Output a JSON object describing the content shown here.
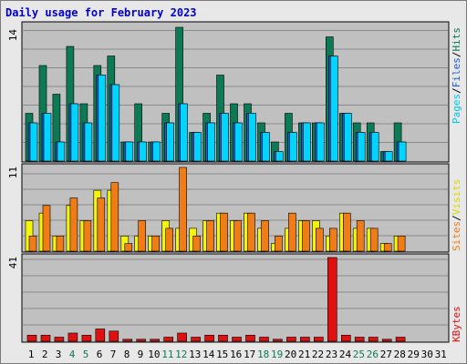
{
  "title": "Daily usage for February 2023",
  "colors": {
    "pages": "#00d4ff",
    "files": "#1e5bd6",
    "hits": "#0b7a55",
    "visits": "#f5f50a",
    "sites": "#f07c17",
    "kbytes": "#e01010",
    "weekend_day": "#0b7a55",
    "panel_bg": "#c0c0c0"
  },
  "legend": {
    "top": {
      "pages": "Pages",
      "sep1": "/",
      "files": "Files",
      "sep2": "/",
      "hits": "Hits"
    },
    "middle": {
      "sites": "Sites",
      "sep": "/",
      "visits": "Visits"
    },
    "bottom": {
      "kbytes": "KBytes"
    }
  },
  "chart_data": {
    "type": "bar",
    "categories": [
      "1",
      "2",
      "3",
      "4",
      "5",
      "6",
      "7",
      "8",
      "9",
      "10",
      "11",
      "12",
      "13",
      "14",
      "15",
      "16",
      "17",
      "18",
      "19",
      "20",
      "21",
      "22",
      "23",
      "24",
      "25",
      "26",
      "27",
      "28",
      "29",
      "30",
      "31"
    ],
    "weekend_days": [
      "4",
      "5",
      "11",
      "12",
      "18",
      "19",
      "25",
      "26"
    ],
    "panels": [
      {
        "id": "top",
        "ymax_label": "14",
        "ylim": [
          0,
          14
        ],
        "series": [
          {
            "name": "Hits",
            "values": [
              5,
              10,
              7,
              12,
              6,
              10,
              11,
              2,
              6,
              2,
              5,
              14,
              3,
              5,
              9,
              6,
              6,
              4,
              2,
              5,
              4,
              4,
              13,
              5,
              4,
              4,
              1,
              4,
              0,
              0,
              0
            ]
          },
          {
            "name": "Files",
            "values": [
              4,
              5,
              2,
              6,
              4,
              9,
              8,
              2,
              2,
              2,
              4,
              6,
              3,
              4,
              5,
              4,
              5,
              3,
              1,
              3,
              4,
              4,
              11,
              5,
              3,
              3,
              1,
              2,
              0,
              0,
              0
            ]
          },
          {
            "name": "Pages",
            "values": [
              4,
              5,
              2,
              6,
              4,
              9,
              8,
              2,
              2,
              2,
              4,
              6,
              3,
              4,
              5,
              4,
              5,
              3,
              1,
              3,
              4,
              4,
              11,
              5,
              3,
              3,
              1,
              2,
              0,
              0,
              0
            ]
          }
        ]
      },
      {
        "id": "middle",
        "ymax_label": "11",
        "ylim": [
          0,
          11
        ],
        "series": [
          {
            "name": "Visits",
            "values": [
              4,
              5,
              2,
              6,
              4,
              8,
              8,
              2,
              2,
              2,
              4,
              3,
              3,
              4,
              5,
              4,
              5,
              3,
              1,
              3,
              4,
              4,
              2,
              5,
              3,
              3,
              1,
              2,
              0,
              0,
              0
            ]
          },
          {
            "name": "Sites",
            "values": [
              2,
              6,
              2,
              7,
              4,
              7,
              9,
              1,
              4,
              2,
              3,
              11,
              2,
              4,
              5,
              4,
              5,
              4,
              2,
              5,
              4,
              3,
              3,
              5,
              4,
              3,
              1,
              2,
              0,
              0,
              0
            ]
          }
        ]
      },
      {
        "id": "bottom",
        "ymax_label": "41",
        "ylim": [
          0,
          41
        ],
        "series": [
          {
            "name": "KBytes",
            "values": [
              3,
              3,
              2,
              4,
              3,
              6,
              5,
              1,
              1,
              1,
              2,
              4,
              2,
              3,
              3,
              2,
              3,
              2,
              1,
              2,
              2,
              2,
              41,
              3,
              2,
              2,
              1,
              2,
              0,
              0,
              0
            ]
          }
        ]
      }
    ]
  }
}
